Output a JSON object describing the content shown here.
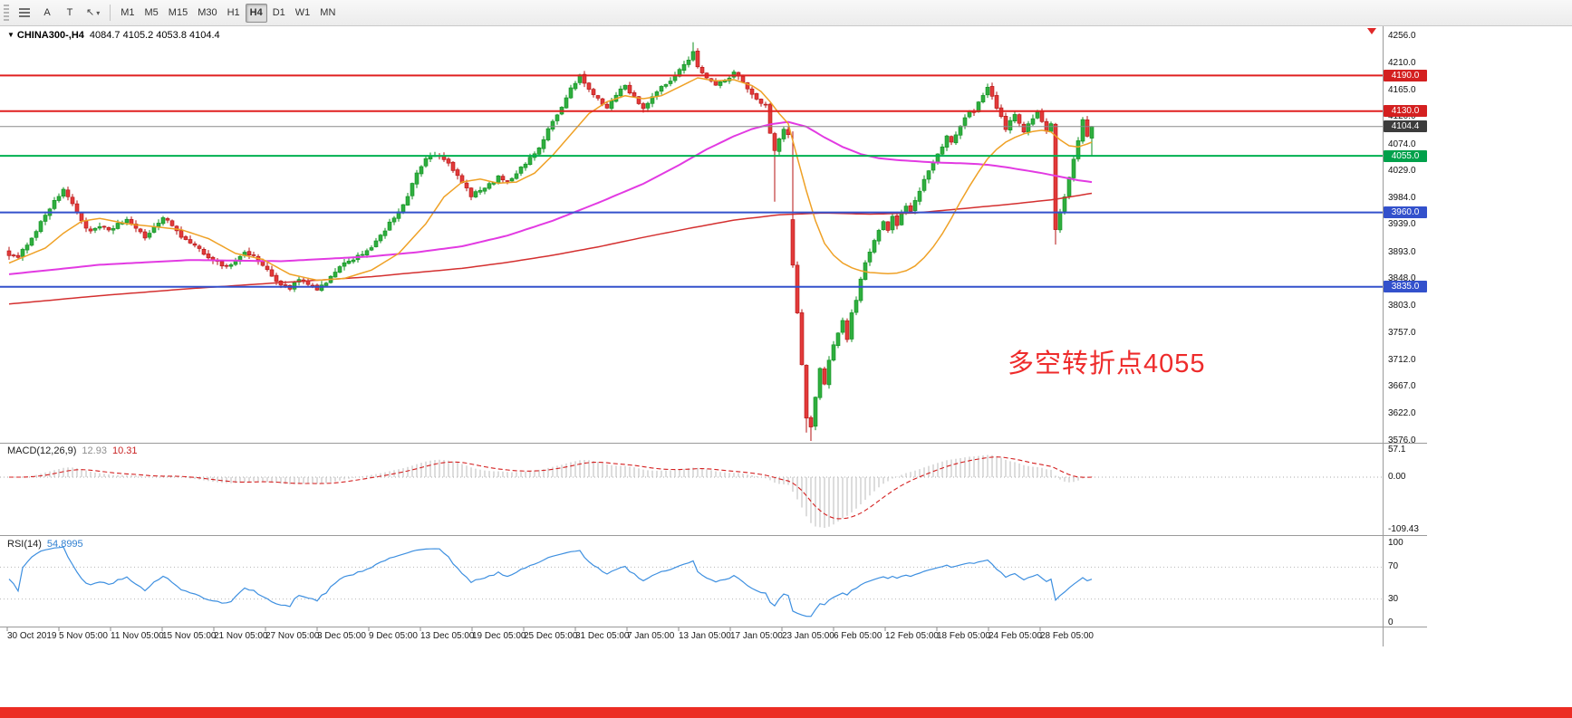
{
  "window": {
    "bottom_strip_color": "#ec2d24"
  },
  "toolbar": {
    "tools": [
      {
        "id": "objects-list",
        "label": ""
      },
      {
        "id": "text-label",
        "label": "A"
      },
      {
        "id": "text-tool",
        "label": "T"
      },
      {
        "id": "drawing-dropdown",
        "label": ""
      }
    ],
    "timeframes": [
      {
        "label": "M1"
      },
      {
        "label": "M5"
      },
      {
        "label": "M15"
      },
      {
        "label": "M30"
      },
      {
        "label": "H1"
      },
      {
        "label": "H4",
        "active": true
      },
      {
        "label": "D1"
      },
      {
        "label": "W1"
      },
      {
        "label": "MN"
      }
    ]
  },
  "chart": {
    "collapse_arrow": "▼",
    "symbol": "CHINA300-,H4",
    "ohlc_text": "4084.7 4105.2 4053.8 4104.4",
    "annotation": {
      "text": "多空转折点4055",
      "color": "#ee2b2b"
    },
    "price_axis_labels": [
      "4256.0",
      "4210.0",
      "4165.0",
      "4120.0",
      "4074.0",
      "4029.0",
      "3984.0",
      "3939.0",
      "3893.0",
      "3848.0",
      "3803.0",
      "3757.0",
      "3712.0",
      "3667.0",
      "3622.0",
      "3576.0"
    ],
    "levels": [
      {
        "label": "4190.0",
        "price": 4190.0,
        "line_color": "#e02020",
        "tag_color": "#d42020"
      },
      {
        "label": "4130.0",
        "price": 4130.0,
        "line_color": "#e02020",
        "tag_color": "#d42020"
      },
      {
        "label": "4104.4",
        "price": 4104.4,
        "line_color": "#8a8a8a",
        "tag_color": "#3c3c3c",
        "current": true
      },
      {
        "label": "4055.0",
        "price": 4055.0,
        "line_color": "#00b050",
        "tag_color": "#00a14b"
      },
      {
        "label": "3960.0",
        "price": 3960.0,
        "line_color": "#3351cc",
        "tag_color": "#3351cc"
      },
      {
        "label": "3835.0",
        "price": 3835.0,
        "line_color": "#3351cc",
        "tag_color": "#3351cc"
      }
    ],
    "time_axis_labels": [
      "30 Oct 2019",
      "5 Nov 05:00",
      "11 Nov 05:00",
      "15 Nov 05:00",
      "21 Nov 05:00",
      "27 Nov 05:00",
      "3 Dec 05:00",
      "9 Dec 05:00",
      "13 Dec 05:00",
      "19 Dec 05:00",
      "25 Dec 05:00",
      "31 Dec 05:00",
      "7 Jan 05:00",
      "13 Jan 05:00",
      "17 Jan 05:00",
      "23 Jan 05:00",
      "6 Feb 05:00",
      "12 Feb 05:00",
      "18 Feb 05:00",
      "24 Feb 05:00",
      "28 Feb 05:00"
    ]
  },
  "macd_panel": {
    "label": "MACD(12,26,9)",
    "value_main": "12.93",
    "value_signal": "10.31",
    "axis_labels": [
      "57.1",
      "0.00",
      "-109.43"
    ]
  },
  "rsi_panel": {
    "label": "RSI(14)",
    "value": "54.8995",
    "axis_labels": [
      "100",
      "70",
      "30",
      "0"
    ]
  },
  "chart_data": {
    "type": "candlestick",
    "symbol": "CHINA300-",
    "timeframe": "H4",
    "bars": 240,
    "price_range": [
      3576.0,
      4256.0
    ],
    "current_bar": {
      "open": 4084.7,
      "high": 4105.2,
      "low": 4053.8,
      "close": 4104.4
    },
    "up_color": "#2fae3f",
    "down_color": "#e23a3a",
    "price_path": [
      [
        0,
        3890
      ],
      [
        2,
        3882
      ],
      [
        4,
        3908
      ],
      [
        6,
        3930
      ],
      [
        8,
        3956
      ],
      [
        10,
        3980
      ],
      [
        12,
        3996
      ],
      [
        14,
        3976
      ],
      [
        16,
        3946
      ],
      [
        18,
        3926
      ],
      [
        20,
        3936
      ],
      [
        22,
        3928
      ],
      [
        24,
        3941
      ],
      [
        26,
        3948
      ],
      [
        28,
        3931
      ],
      [
        30,
        3918
      ],
      [
        32,
        3936
      ],
      [
        34,
        3950
      ],
      [
        36,
        3938
      ],
      [
        38,
        3921
      ],
      [
        40,
        3906
      ],
      [
        42,
        3898
      ],
      [
        44,
        3886
      ],
      [
        46,
        3876
      ],
      [
        48,
        3869
      ],
      [
        50,
        3879
      ],
      [
        52,
        3893
      ],
      [
        54,
        3886
      ],
      [
        56,
        3871
      ],
      [
        58,
        3853
      ],
      [
        60,
        3839
      ],
      [
        62,
        3833
      ],
      [
        64,
        3846
      ],
      [
        66,
        3839
      ],
      [
        68,
        3829
      ],
      [
        70,
        3843
      ],
      [
        72,
        3859
      ],
      [
        74,
        3873
      ],
      [
        76,
        3883
      ],
      [
        78,
        3891
      ],
      [
        80,
        3903
      ],
      [
        82,
        3919
      ],
      [
        84,
        3941
      ],
      [
        86,
        3963
      ],
      [
        88,
        3986
      ],
      [
        90,
        4026
      ],
      [
        92,
        4049
      ],
      [
        94,
        4057
      ],
      [
        96,
        4049
      ],
      [
        98,
        4031
      ],
      [
        100,
        4009
      ],
      [
        102,
        3989
      ],
      [
        104,
        3996
      ],
      [
        106,
        4006
      ],
      [
        108,
        4019
      ],
      [
        110,
        4013
      ],
      [
        112,
        4026
      ],
      [
        114,
        4043
      ],
      [
        116,
        4059
      ],
      [
        118,
        4083
      ],
      [
        120,
        4113
      ],
      [
        122,
        4136
      ],
      [
        124,
        4169
      ],
      [
        126,
        4189
      ],
      [
        128,
        4166
      ],
      [
        130,
        4149
      ],
      [
        132,
        4136
      ],
      [
        134,
        4159
      ],
      [
        136,
        4173
      ],
      [
        138,
        4153
      ],
      [
        140,
        4136
      ],
      [
        142,
        4153
      ],
      [
        144,
        4169
      ],
      [
        146,
        4183
      ],
      [
        148,
        4199
      ],
      [
        150,
        4219
      ],
      [
        151,
        4229
      ],
      [
        152,
        4206
      ],
      [
        154,
        4186
      ],
      [
        156,
        4173
      ],
      [
        158,
        4183
      ],
      [
        160,
        4193
      ],
      [
        162,
        4181
      ],
      [
        164,
        4159
      ],
      [
        166,
        4146
      ],
      [
        167,
        4139
      ],
      [
        168,
        4093
      ],
      [
        169,
        4063
      ],
      [
        170,
        4083
      ],
      [
        171,
        4099
      ],
      [
        172,
        4089
      ],
      [
        173,
        3873
      ],
      [
        174,
        3793
      ],
      [
        175,
        3703
      ],
      [
        176,
        3613
      ],
      [
        177,
        3597
      ],
      [
        178,
        3649
      ],
      [
        179,
        3696
      ],
      [
        180,
        3673
      ],
      [
        181,
        3713
      ],
      [
        182,
        3739
      ],
      [
        183,
        3759
      ],
      [
        184,
        3779
      ],
      [
        185,
        3749
      ],
      [
        186,
        3789
      ],
      [
        187,
        3813
      ],
      [
        188,
        3849
      ],
      [
        189,
        3873
      ],
      [
        190,
        3896
      ],
      [
        191,
        3913
      ],
      [
        192,
        3929
      ],
      [
        193,
        3943
      ],
      [
        194,
        3929
      ],
      [
        195,
        3953
      ],
      [
        196,
        3939
      ],
      [
        197,
        3959
      ],
      [
        198,
        3973
      ],
      [
        199,
        3961
      ],
      [
        200,
        3979
      ],
      [
        201,
        3993
      ],
      [
        202,
        4013
      ],
      [
        203,
        4029
      ],
      [
        204,
        4046
      ],
      [
        205,
        4059
      ],
      [
        206,
        4073
      ],
      [
        207,
        4089
      ],
      [
        208,
        4076
      ],
      [
        209,
        4093
      ],
      [
        210,
        4106
      ],
      [
        211,
        4119
      ],
      [
        212,
        4133
      ],
      [
        213,
        4126
      ],
      [
        214,
        4143
      ],
      [
        215,
        4159
      ],
      [
        216,
        4173
      ],
      [
        217,
        4156
      ],
      [
        218,
        4136
      ],
      [
        219,
        4119
      ],
      [
        220,
        4099
      ],
      [
        221,
        4113
      ],
      [
        222,
        4126
      ],
      [
        223,
        4109
      ],
      [
        224,
        4093
      ],
      [
        225,
        4106
      ],
      [
        226,
        4119
      ],
      [
        227,
        4129
      ],
      [
        228,
        4113
      ],
      [
        229,
        4096
      ],
      [
        230,
        4109
      ],
      [
        231,
        3933
      ],
      [
        232,
        3959
      ],
      [
        233,
        3986
      ],
      [
        234,
        4016
      ],
      [
        235,
        4049
      ],
      [
        236,
        4083
      ],
      [
        237,
        4113
      ],
      [
        238,
        4089
      ],
      [
        239,
        4104.4
      ]
    ],
    "overrides": [
      {
        "i": 151,
        "high": 4246.0
      },
      {
        "i": 169,
        "low": 3978.0
      },
      {
        "i": 173,
        "open": 3948.0
      },
      {
        "i": 176,
        "low": 3590.0
      },
      {
        "i": 177,
        "low": 3576.0
      },
      {
        "i": 231,
        "low": 3906.0
      },
      {
        "i": 239,
        "open": 4084.7,
        "high": 4105.2,
        "low": 4053.8,
        "close": 4104.4
      }
    ],
    "moving_averages": [
      {
        "name": "ma-fast",
        "color": "#efa126",
        "path": [
          [
            0,
            3875
          ],
          [
            8,
            3900
          ],
          [
            12,
            3925
          ],
          [
            16,
            3945
          ],
          [
            20,
            3950
          ],
          [
            26,
            3941
          ],
          [
            32,
            3936
          ],
          [
            38,
            3931
          ],
          [
            44,
            3916
          ],
          [
            50,
            3891
          ],
          [
            56,
            3881
          ],
          [
            62,
            3856
          ],
          [
            68,
            3846
          ],
          [
            74,
            3849
          ],
          [
            80,
            3863
          ],
          [
            86,
            3891
          ],
          [
            92,
            3941
          ],
          [
            96,
            3986
          ],
          [
            100,
            4011
          ],
          [
            104,
            4016
          ],
          [
            108,
            4009
          ],
          [
            112,
            4011
          ],
          [
            116,
            4026
          ],
          [
            120,
            4056
          ],
          [
            124,
            4091
          ],
          [
            128,
            4126
          ],
          [
            132,
            4146
          ],
          [
            136,
            4156
          ],
          [
            140,
            4151
          ],
          [
            144,
            4156
          ],
          [
            148,
            4171
          ],
          [
            152,
            4186
          ],
          [
            156,
            4181
          ],
          [
            160,
            4183
          ],
          [
            164,
            4173
          ],
          [
            166,
            4163
          ],
          [
            168,
            4146
          ],
          [
            170,
            4126
          ],
          [
            172,
            4109
          ],
          [
            174,
            4052
          ],
          [
            176,
            3996
          ],
          [
            178,
            3946
          ],
          [
            180,
            3908
          ],
          [
            182,
            3888
          ],
          [
            184,
            3875
          ],
          [
            186,
            3867
          ],
          [
            188,
            3862
          ],
          [
            190,
            3859
          ],
          [
            192,
            3858
          ],
          [
            194,
            3857
          ],
          [
            196,
            3858
          ],
          [
            198,
            3862
          ],
          [
            200,
            3870
          ],
          [
            202,
            3884
          ],
          [
            204,
            3902
          ],
          [
            206,
            3924
          ],
          [
            208,
            3950
          ],
          [
            210,
            3978
          ],
          [
            212,
            4004
          ],
          [
            214,
            4028
          ],
          [
            216,
            4050
          ],
          [
            218,
            4066
          ],
          [
            220,
            4078
          ],
          [
            222,
            4086
          ],
          [
            224,
            4092
          ],
          [
            226,
            4096
          ],
          [
            228,
            4098
          ],
          [
            230,
            4095
          ],
          [
            232,
            4082
          ],
          [
            234,
            4072
          ],
          [
            236,
            4070
          ],
          [
            238,
            4075
          ],
          [
            239,
            4078
          ]
        ]
      },
      {
        "name": "ma-mid",
        "color": "#e23ae2",
        "path": [
          [
            0,
            3856
          ],
          [
            20,
            3872
          ],
          [
            40,
            3880
          ],
          [
            60,
            3878
          ],
          [
            80,
            3886
          ],
          [
            90,
            3893
          ],
          [
            100,
            3903
          ],
          [
            110,
            3921
          ],
          [
            120,
            3946
          ],
          [
            130,
            3976
          ],
          [
            140,
            4008
          ],
          [
            148,
            4040
          ],
          [
            154,
            4066
          ],
          [
            160,
            4088
          ],
          [
            164,
            4100
          ],
          [
            168,
            4108
          ],
          [
            172,
            4112
          ],
          [
            176,
            4104
          ],
          [
            180,
            4086
          ],
          [
            184,
            4070
          ],
          [
            188,
            4058
          ],
          [
            192,
            4051
          ],
          [
            196,
            4048
          ],
          [
            200,
            4046
          ],
          [
            204,
            4044
          ],
          [
            208,
            4043
          ],
          [
            212,
            4042
          ],
          [
            216,
            4040
          ],
          [
            220,
            4036
          ],
          [
            224,
            4031
          ],
          [
            228,
            4026
          ],
          [
            232,
            4020
          ],
          [
            236,
            4014
          ],
          [
            239,
            4011
          ]
        ]
      },
      {
        "name": "ma-slow",
        "color": "#d43030",
        "path": [
          [
            0,
            3806
          ],
          [
            20,
            3820
          ],
          [
            40,
            3832
          ],
          [
            60,
            3842
          ],
          [
            80,
            3852
          ],
          [
            100,
            3866
          ],
          [
            110,
            3876
          ],
          [
            120,
            3888
          ],
          [
            130,
            3902
          ],
          [
            140,
            3918
          ],
          [
            150,
            3933
          ],
          [
            160,
            3947
          ],
          [
            170,
            3956
          ],
          [
            180,
            3959
          ],
          [
            190,
            3957
          ],
          [
            200,
            3959
          ],
          [
            210,
            3966
          ],
          [
            220,
            3973
          ],
          [
            230,
            3981
          ],
          [
            239,
            3992
          ]
        ]
      }
    ],
    "indicators": [
      {
        "name": "MACD",
        "params": [
          12,
          26,
          9
        ],
        "current": [
          12.93,
          10.31
        ],
        "axis_range": [
          -109.43,
          57.1
        ],
        "histogram_color": "#bbbbbb",
        "signal_color": "#d42020"
      },
      {
        "name": "RSI",
        "params": [
          14
        ],
        "current": 54.8995,
        "axis_range": [
          0,
          100
        ],
        "levels": [
          30,
          70
        ],
        "line_color": "#3d8fe0"
      }
    ]
  }
}
